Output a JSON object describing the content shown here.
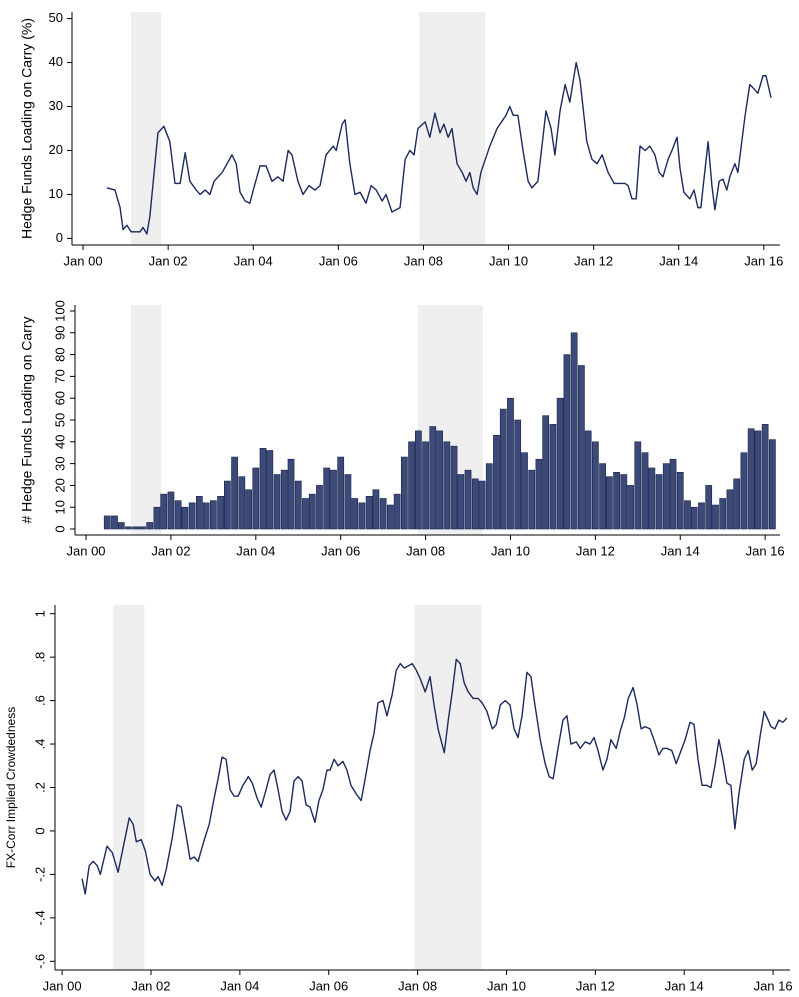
{
  "chart_data": [
    {
      "type": "line",
      "ylabel": "Hedge Funds Loading on Carry (%)",
      "color": "#1c2a5e",
      "xlim": [
        1999.74,
        2016.38
      ],
      "ylim": [
        -1.5,
        51.5
      ],
      "xticks": [
        {
          "value": 2000,
          "label": "Jan 00"
        },
        {
          "value": 2002,
          "label": "Jan 02"
        },
        {
          "value": 2004,
          "label": "Jan 04"
        },
        {
          "value": 2006,
          "label": "Jan 06"
        },
        {
          "value": 2008,
          "label": "Jan 08"
        },
        {
          "value": 2010,
          "label": "Jan 10"
        },
        {
          "value": 2012,
          "label": "Jan 12"
        },
        {
          "value": 2014,
          "label": "Jan 14"
        },
        {
          "value": 2016,
          "label": "Jan 16"
        }
      ],
      "yticks": [
        0,
        10,
        20,
        30,
        40,
        50
      ],
      "shaded_regions": [
        [
          2001.13,
          2001.83
        ],
        [
          2007.9,
          2009.45
        ]
      ],
      "x": [
        2000.56,
        2000.75,
        2000.87,
        2000.94,
        2001.03,
        2001.13,
        2001.34,
        2001.41,
        2001.5,
        2001.57,
        2001.69,
        2001.76,
        2001.9,
        2002.04,
        2002.16,
        2002.28,
        2002.4,
        2002.51,
        2002.66,
        2002.75,
        2002.87,
        2002.98,
        2003.08,
        2003.27,
        2003.5,
        2003.6,
        2003.69,
        2003.81,
        2003.92,
        2004.0,
        2004.16,
        2004.3,
        2004.44,
        2004.58,
        2004.7,
        2004.82,
        2004.91,
        2005.05,
        2005.17,
        2005.31,
        2005.45,
        2005.57,
        2005.71,
        2005.88,
        2005.95,
        2006.09,
        2006.16,
        2006.27,
        2006.39,
        2006.51,
        2006.65,
        2006.77,
        2006.89,
        2007.03,
        2007.12,
        2007.26,
        2007.45,
        2007.57,
        2007.68,
        2007.78,
        2007.87,
        2008.04,
        2008.15,
        2008.27,
        2008.39,
        2008.48,
        2008.58,
        2008.67,
        2008.79,
        2008.91,
        2009.0,
        2009.09,
        2009.17,
        2009.26,
        2009.35,
        2009.56,
        2009.73,
        2009.94,
        2010.03,
        2010.11,
        2010.22,
        2010.34,
        2010.46,
        2010.55,
        2010.69,
        2010.88,
        2011.0,
        2011.09,
        2011.21,
        2011.33,
        2011.44,
        2011.59,
        2011.68,
        2011.84,
        2011.96,
        2012.08,
        2012.2,
        2012.34,
        2012.48,
        2012.62,
        2012.74,
        2012.81,
        2012.9,
        2013.0,
        2013.09,
        2013.21,
        2013.32,
        2013.44,
        2013.54,
        2013.63,
        2013.75,
        2013.84,
        2013.96,
        2014.03,
        2014.12,
        2014.26,
        2014.36,
        2014.45,
        2014.52,
        2014.69,
        2014.78,
        2014.85,
        2014.95,
        2015.04,
        2015.13,
        2015.2,
        2015.32,
        2015.39,
        2015.56,
        2015.67,
        2015.77,
        2015.86,
        2015.98,
        2016.05,
        2016.17
      ],
      "values": [
        11.5,
        11,
        7,
        2,
        3,
        1.5,
        1.5,
        2.5,
        1,
        5,
        17,
        24,
        25.5,
        22,
        12.5,
        12.5,
        19.5,
        13,
        11,
        10,
        11,
        10,
        13,
        15,
        19,
        17,
        10.5,
        8.5,
        8,
        11,
        16.5,
        16.5,
        13,
        14,
        13,
        20,
        19,
        13,
        10,
        12,
        11,
        12,
        19,
        21,
        20,
        26,
        27,
        17,
        10,
        10.5,
        8,
        12,
        11,
        8.5,
        10,
        6,
        7,
        18,
        20,
        19,
        25,
        26.5,
        23,
        28.5,
        24,
        26,
        23,
        25,
        17,
        15,
        13,
        15,
        11.5,
        10,
        15,
        21,
        25,
        28,
        30,
        28,
        28,
        20,
        13,
        11.5,
        13,
        29,
        25,
        19,
        29,
        35,
        31,
        40,
        36,
        22,
        18,
        17,
        19,
        15,
        12.5,
        12.5,
        12.5,
        12,
        9,
        9,
        21,
        20,
        21,
        19,
        15,
        14,
        18,
        20,
        23,
        16,
        10.5,
        9,
        11,
        7,
        7,
        22,
        12,
        6.5,
        13,
        13.5,
        11,
        14,
        17,
        15,
        28,
        35,
        34,
        33,
        37,
        37,
        32
      ]
    },
    {
      "type": "bar",
      "ylabel": "# Hedge Funds Loading on Carry",
      "color": "#3b4a78",
      "xlim": [
        1999.74,
        2016.35
      ],
      "ylim": [
        -2.75,
        102.75
      ],
      "xticks": [
        {
          "value": 2000,
          "label": "Jan 00"
        },
        {
          "value": 2002,
          "label": "Jan 02"
        },
        {
          "value": 2004,
          "label": "Jan 04"
        },
        {
          "value": 2006,
          "label": "Jan 06"
        },
        {
          "value": 2008,
          "label": "Jan 08"
        },
        {
          "value": 2010,
          "label": "Jan 10"
        },
        {
          "value": 2012,
          "label": "Jan 12"
        },
        {
          "value": 2014,
          "label": "Jan 14"
        },
        {
          "value": 2016,
          "label": "Jan 16"
        }
      ],
      "yticks": [
        0,
        10,
        20,
        30,
        40,
        50,
        60,
        70,
        80,
        90,
        100
      ],
      "shaded_regions": [
        [
          2001.06,
          2001.77
        ],
        [
          2007.82,
          2009.35
        ]
      ],
      "x": [
        2000.5,
        2000.67,
        2000.83,
        2001.0,
        2001.17,
        2001.33,
        2001.5,
        2001.67,
        2001.83,
        2002.0,
        2002.17,
        2002.33,
        2002.5,
        2002.67,
        2002.83,
        2003.0,
        2003.17,
        2003.33,
        2003.5,
        2003.67,
        2003.83,
        2004.0,
        2004.17,
        2004.33,
        2004.5,
        2004.67,
        2004.83,
        2005.0,
        2005.17,
        2005.33,
        2005.5,
        2005.67,
        2005.83,
        2006.0,
        2006.17,
        2006.33,
        2006.5,
        2006.67,
        2006.83,
        2007.0,
        2007.17,
        2007.33,
        2007.5,
        2007.67,
        2007.83,
        2008.0,
        2008.17,
        2008.33,
        2008.5,
        2008.67,
        2008.83,
        2009.0,
        2009.17,
        2009.33,
        2009.5,
        2009.67,
        2009.83,
        2010.0,
        2010.17,
        2010.33,
        2010.5,
        2010.67,
        2010.83,
        2011.0,
        2011.17,
        2011.33,
        2011.5,
        2011.67,
        2011.83,
        2012.0,
        2012.17,
        2012.33,
        2012.5,
        2012.67,
        2012.83,
        2013.0,
        2013.17,
        2013.33,
        2013.5,
        2013.67,
        2013.83,
        2014.0,
        2014.17,
        2014.33,
        2014.5,
        2014.67,
        2014.83,
        2015.0,
        2015.17,
        2015.33,
        2015.5,
        2015.67,
        2015.83,
        2016.0,
        2016.17
      ],
      "values": [
        6,
        6,
        3,
        1,
        1,
        1,
        3,
        10,
        16,
        17,
        13,
        10,
        12,
        15,
        12,
        13,
        15,
        22,
        33,
        24,
        18,
        28,
        37,
        36,
        25,
        27,
        32,
        22,
        14,
        16,
        20,
        28,
        27,
        33,
        25,
        14,
        12,
        15,
        18,
        14,
        11,
        16,
        33,
        40,
        45,
        40,
        47,
        45,
        40,
        38,
        25,
        27,
        23,
        22,
        30,
        43,
        55,
        60,
        50,
        35,
        27,
        32,
        52,
        48,
        60,
        80,
        90,
        75,
        45,
        40,
        30,
        24,
        26,
        25,
        20,
        40,
        35,
        28,
        25,
        30,
        32,
        26,
        13,
        10,
        12,
        20,
        11,
        14,
        18,
        23,
        35,
        46,
        45,
        48,
        41
      ]
    },
    {
      "type": "line",
      "ylabel": "FX-Corr Implied Crowdedness",
      "color": "#1c2a5e",
      "xlim": [
        1999.84,
        2016.38
      ],
      "ylim": [
        -0.64,
        1.04
      ],
      "xticks": [
        {
          "value": 2000,
          "label": "Jan 00"
        },
        {
          "value": 2002,
          "label": "Jan 02"
        },
        {
          "value": 2004,
          "label": "Jan 04"
        },
        {
          "value": 2006,
          "label": "Jan 06"
        },
        {
          "value": 2008,
          "label": "Jan 08"
        },
        {
          "value": 2010,
          "label": "Jan 10"
        },
        {
          "value": 2012,
          "label": "Jan 12"
        },
        {
          "value": 2014,
          "label": "Jan 14"
        },
        {
          "value": 2016,
          "label": "Jan 16"
        }
      ],
      "yticks": [
        {
          "value": -0.6,
          "label": "-.6"
        },
        {
          "value": -0.4,
          "label": "-.4"
        },
        {
          "value": -0.2,
          "label": "-.2"
        },
        0,
        {
          "value": 0.2,
          "label": ".2"
        },
        {
          "value": 0.4,
          "label": ".4"
        },
        {
          "value": 0.6,
          "label": ".6"
        },
        {
          "value": 0.8,
          "label": ".8"
        },
        1
      ],
      "shaded_regions": [
        [
          2001.15,
          2001.85
        ],
        [
          2007.92,
          2009.45
        ]
      ],
      "x": [
        2000.45,
        2000.52,
        2000.61,
        2000.7,
        2000.79,
        2000.86,
        2001.01,
        2001.13,
        2001.26,
        2001.4,
        2001.51,
        2001.6,
        2001.67,
        2001.78,
        2001.87,
        2001.98,
        2002.09,
        2002.16,
        2002.25,
        2002.34,
        2002.48,
        2002.59,
        2002.68,
        2002.79,
        2002.88,
        2002.97,
        2003.06,
        2003.2,
        2003.31,
        2003.42,
        2003.51,
        2003.6,
        2003.69,
        2003.78,
        2003.87,
        2003.96,
        2004.07,
        2004.19,
        2004.28,
        2004.39,
        2004.48,
        2004.59,
        2004.68,
        2004.77,
        2004.86,
        2004.95,
        2005.04,
        2005.13,
        2005.22,
        2005.31,
        2005.4,
        2005.49,
        2005.58,
        2005.69,
        2005.78,
        2005.87,
        2005.96,
        2006.03,
        2006.12,
        2006.21,
        2006.32,
        2006.41,
        2006.5,
        2006.62,
        2006.73,
        2006.82,
        2006.93,
        2007.02,
        2007.11,
        2007.22,
        2007.31,
        2007.43,
        2007.52,
        2007.61,
        2007.7,
        2007.79,
        2007.88,
        2007.97,
        2008.06,
        2008.17,
        2008.28,
        2008.37,
        2008.46,
        2008.6,
        2008.69,
        2008.78,
        2008.87,
        2008.96,
        2009.05,
        2009.14,
        2009.25,
        2009.36,
        2009.45,
        2009.56,
        2009.68,
        2009.77,
        2009.86,
        2009.97,
        2010.08,
        2010.17,
        2010.26,
        2010.35,
        2010.46,
        2010.55,
        2010.64,
        2010.76,
        2010.87,
        2010.96,
        2011.05,
        2011.16,
        2011.27,
        2011.36,
        2011.45,
        2011.57,
        2011.66,
        2011.77,
        2011.88,
        2011.97,
        2012.06,
        2012.17,
        2012.26,
        2012.35,
        2012.47,
        2012.56,
        2012.65,
        2012.74,
        2012.85,
        2012.94,
        2013.03,
        2013.12,
        2013.23,
        2013.32,
        2013.43,
        2013.52,
        2013.61,
        2013.72,
        2013.82,
        2013.91,
        2014.02,
        2014.13,
        2014.22,
        2014.31,
        2014.4,
        2014.51,
        2014.6,
        2014.69,
        2014.78,
        2014.87,
        2014.96,
        2015.05,
        2015.14,
        2015.23,
        2015.35,
        2015.44,
        2015.53,
        2015.62,
        2015.71,
        2015.8,
        2015.89,
        2015.95,
        2016.04,
        2016.13,
        2016.22,
        2016.31
      ],
      "values": [
        -0.22,
        -0.29,
        -0.16,
        -0.14,
        -0.16,
        -0.2,
        -0.07,
        -0.1,
        -0.19,
        -0.05,
        0.06,
        0.03,
        -0.05,
        -0.04,
        -0.09,
        -0.2,
        -0.23,
        -0.21,
        -0.25,
        -0.18,
        -0.03,
        0.12,
        0.11,
        -0.02,
        -0.13,
        -0.12,
        -0.14,
        -0.04,
        0.03,
        0.15,
        0.24,
        0.34,
        0.33,
        0.19,
        0.16,
        0.16,
        0.21,
        0.25,
        0.22,
        0.15,
        0.11,
        0.19,
        0.26,
        0.28,
        0.19,
        0.09,
        0.05,
        0.09,
        0.23,
        0.25,
        0.23,
        0.12,
        0.11,
        0.04,
        0.14,
        0.19,
        0.28,
        0.28,
        0.33,
        0.3,
        0.32,
        0.28,
        0.21,
        0.17,
        0.14,
        0.24,
        0.37,
        0.45,
        0.59,
        0.6,
        0.53,
        0.63,
        0.74,
        0.77,
        0.75,
        0.76,
        0.77,
        0.74,
        0.7,
        0.64,
        0.71,
        0.58,
        0.47,
        0.36,
        0.51,
        0.64,
        0.79,
        0.77,
        0.68,
        0.64,
        0.61,
        0.61,
        0.59,
        0.55,
        0.47,
        0.49,
        0.58,
        0.6,
        0.58,
        0.47,
        0.43,
        0.53,
        0.73,
        0.71,
        0.58,
        0.42,
        0.31,
        0.25,
        0.24,
        0.38,
        0.51,
        0.53,
        0.4,
        0.41,
        0.38,
        0.41,
        0.4,
        0.43,
        0.37,
        0.28,
        0.33,
        0.42,
        0.38,
        0.46,
        0.52,
        0.61,
        0.66,
        0.58,
        0.47,
        0.48,
        0.47,
        0.42,
        0.35,
        0.38,
        0.38,
        0.37,
        0.31,
        0.36,
        0.42,
        0.5,
        0.49,
        0.33,
        0.21,
        0.21,
        0.2,
        0.3,
        0.42,
        0.33,
        0.22,
        0.21,
        0.01,
        0.17,
        0.33,
        0.37,
        0.28,
        0.31,
        0.44,
        0.55,
        0.51,
        0.48,
        0.47,
        0.51,
        0.5,
        0.52
      ]
    }
  ]
}
